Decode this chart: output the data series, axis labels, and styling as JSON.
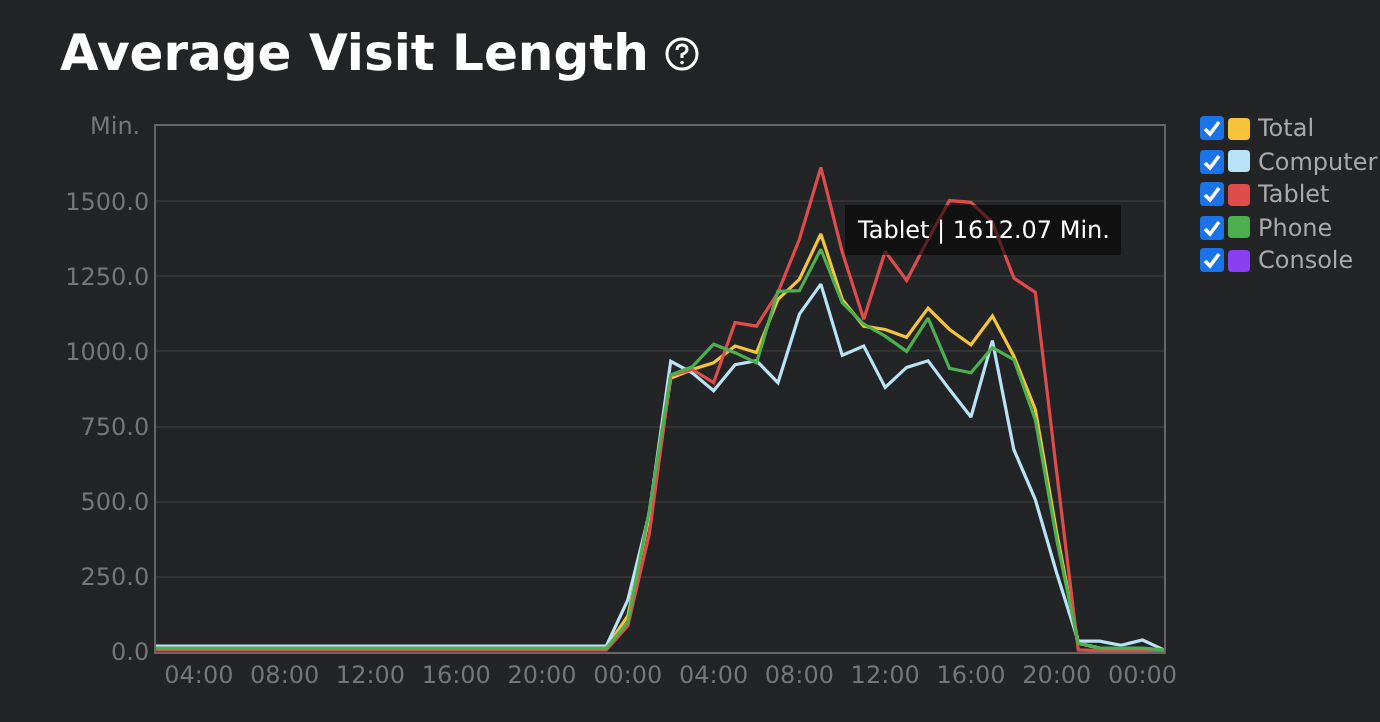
{
  "chart_data": {
    "type": "line",
    "title": "Average Visit Length",
    "ylabel": "Min.",
    "x": [
      "2000-01-01T02:00",
      "2000-01-01T03:00",
      "2000-01-01T04:00",
      "2000-01-01T05:00",
      "2000-01-01T06:00",
      "2000-01-01T07:00",
      "2000-01-01T08:00",
      "2000-01-01T09:00",
      "2000-01-01T10:00",
      "2000-01-01T11:00",
      "2000-01-01T12:00",
      "2000-01-01T13:00",
      "2000-01-01T14:00",
      "2000-01-01T15:00",
      "2000-01-01T16:00",
      "2000-01-01T17:00",
      "2000-01-01T18:00",
      "2000-01-01T19:00",
      "2000-01-01T20:00",
      "2000-01-01T21:00",
      "2000-01-01T22:00",
      "2000-01-01T23:00",
      "2000-01-02T00:00",
      "2000-01-02T01:00",
      "2000-01-02T02:00",
      "2000-01-02T03:00",
      "2000-01-02T04:00",
      "2000-01-02T05:00",
      "2000-01-02T06:00",
      "2000-01-02T07:00",
      "2000-01-02T08:00",
      "2000-01-02T09:00",
      "2000-01-02T10:00",
      "2000-01-02T11:00",
      "2000-01-02T12:00",
      "2000-01-02T13:00",
      "2000-01-02T14:00",
      "2000-01-02T15:00",
      "2000-01-02T16:00",
      "2000-01-02T17:00",
      "2000-01-02T18:00",
      "2000-01-02T19:00",
      "2000-01-02T20:00",
      "2000-01-02T21:00",
      "2000-01-02T22:00",
      "2000-01-02T23:00",
      "2000-01-03T00:00",
      "2000-01-03T01:00"
    ],
    "series": [
      {
        "name": "Total",
        "color": "#f5c43b",
        "values": [
          null,
          null,
          null,
          null,
          null,
          null,
          null,
          null,
          null,
          null,
          null,
          null,
          null,
          null,
          null,
          null,
          null,
          null,
          null,
          null,
          15,
          15,
          120,
          450,
          911,
          940,
          962,
          1018,
          996,
          1173,
          1240,
          1391,
          1173,
          1084,
          1073,
          1047,
          1144,
          1073,
          1022,
          1118,
          984,
          807,
          396,
          29,
          13,
          null,
          null,
          null
        ]
      },
      {
        "name": "Computer",
        "color": "#b9e3f7",
        "values": [
          20,
          20,
          20,
          20,
          20,
          20,
          20,
          20,
          20,
          20,
          20,
          20,
          20,
          20,
          20,
          20,
          20,
          20,
          20,
          20,
          20,
          20,
          173,
          460,
          967,
          929,
          869,
          956,
          969,
          896,
          1124,
          1224,
          987,
          1018,
          880,
          947,
          969,
          873,
          782,
          1036,
          673,
          507,
          262,
          36,
          36,
          22,
          40,
          7
        ]
      },
      {
        "name": "Tablet",
        "color": "#e04c4c",
        "values": [
          7,
          7,
          7,
          7,
          7,
          7,
          7,
          7,
          7,
          7,
          7,
          7,
          7,
          7,
          7,
          7,
          7,
          7,
          7,
          7,
          7,
          7,
          87,
          393,
          920,
          940,
          896,
          1096,
          1084,
          1196,
          1373,
          1612.07,
          1330,
          1107,
          1333,
          1236,
          1373,
          1502,
          1496,
          1429,
          1244,
          1196,
          596,
          7,
          5,
          5,
          5,
          5
        ]
      },
      {
        "name": "Phone",
        "color": "#4caf50",
        "values": [
          13,
          13,
          13,
          13,
          13,
          13,
          13,
          13,
          13,
          13,
          13,
          13,
          13,
          13,
          13,
          13,
          13,
          13,
          13,
          13,
          13,
          13,
          100,
          470,
          922,
          949,
          1024,
          996,
          962,
          1200,
          1202,
          1340,
          1162,
          1091,
          1051,
          1000,
          1111,
          944,
          929,
          1013,
          973,
          773,
          373,
          29,
          13,
          13,
          13,
          7
        ]
      },
      {
        "name": "Console",
        "color": "#8a3ff0",
        "values": [
          null,
          null,
          null,
          null,
          null,
          null,
          null,
          null,
          null,
          null,
          null,
          null,
          null,
          null,
          null,
          null,
          null,
          null,
          null,
          null,
          null,
          null,
          null,
          null,
          null,
          null,
          null,
          null,
          null,
          null,
          null,
          null,
          null,
          null,
          null,
          null,
          null,
          null,
          null,
          null,
          null,
          null,
          null,
          null,
          null,
          null,
          null,
          null
        ]
      }
    ],
    "annotations": [
      {
        "text": "Tablet | 1612.07 Min.",
        "x": "2000-01-02T09:00",
        "y": 1612.07
      }
    ],
    "xlim": [
      "2000-01-01T02:00",
      "2000-01-03T01:00"
    ],
    "xticks": [
      {
        "value": "2000-01-01T04:00",
        "label": "04:00"
      },
      {
        "value": "2000-01-01T08:00",
        "label": "08:00"
      },
      {
        "value": "2000-01-01T12:00",
        "label": "12:00"
      },
      {
        "value": "2000-01-01T16:00",
        "label": "16:00"
      },
      {
        "value": "2000-01-01T20:00",
        "label": "20:00"
      },
      {
        "value": "2000-01-02T00:00",
        "label": "00:00"
      },
      {
        "value": "2000-01-02T04:00",
        "label": "04:00"
      },
      {
        "value": "2000-01-02T08:00",
        "label": "08:00"
      },
      {
        "value": "2000-01-02T12:00",
        "label": "12:00"
      },
      {
        "value": "2000-01-02T16:00",
        "label": "16:00"
      },
      {
        "value": "2000-01-02T20:00",
        "label": "20:00"
      },
      {
        "value": "2000-01-03T00:00",
        "label": "00:00"
      }
    ],
    "ylim": [
      0,
      1750
    ],
    "yticks": [
      {
        "value": 0,
        "label": "0.0"
      },
      {
        "value": 250,
        "label": "250.0"
      },
      {
        "value": 500,
        "label": "500.0"
      },
      {
        "value": 750,
        "label": "750.0"
      },
      {
        "value": 1000,
        "label": "1000.0"
      },
      {
        "value": 1250,
        "label": "1250.0"
      },
      {
        "value": 1500,
        "label": "1500.0"
      }
    ],
    "grid": "y",
    "legend": "top right",
    "marker": "none",
    "line_style": "solid"
  }
}
